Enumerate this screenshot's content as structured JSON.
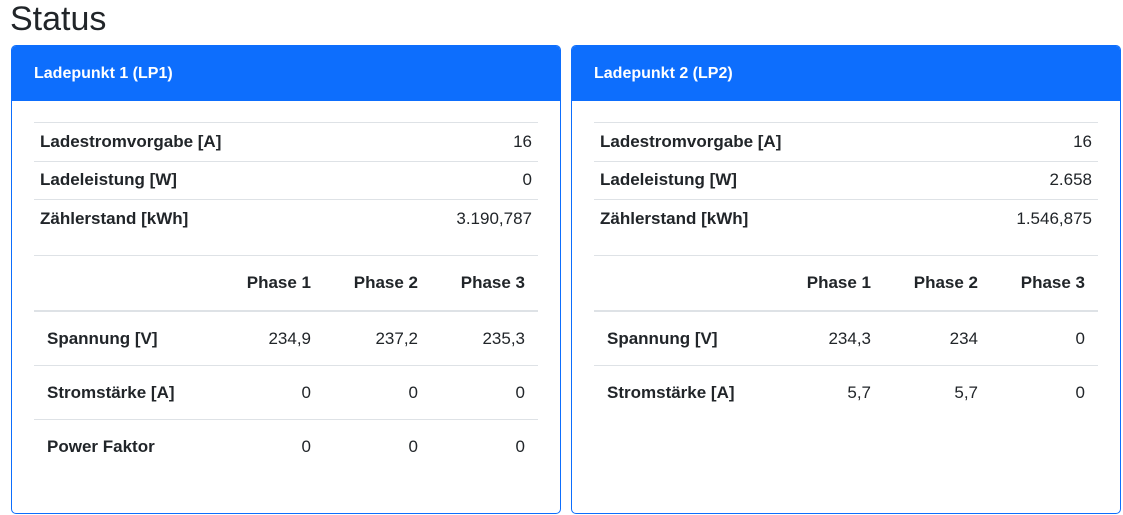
{
  "page": {
    "title": "Status"
  },
  "colors": {
    "primary": "#0d6efd",
    "border": "#dee2e6",
    "text": "#212529"
  },
  "cards": [
    {
      "header": "Ladepunkt 1 (LP1)",
      "kv": [
        {
          "label": "Ladestromvorgabe [A]",
          "value": "16"
        },
        {
          "label": "Ladeleistung [W]",
          "value": "0"
        },
        {
          "label": "Zählerstand [kWh]",
          "value": "3.190,787"
        }
      ],
      "phase_headers": [
        "Phase 1",
        "Phase 2",
        "Phase 3"
      ],
      "phase_rows": [
        {
          "label": "Spannung [V]",
          "values": [
            "234,9",
            "237,2",
            "235,3"
          ]
        },
        {
          "label": "Stromstärke [A]",
          "values": [
            "0",
            "0",
            "0"
          ]
        },
        {
          "label": "Power Faktor",
          "values": [
            "0",
            "0",
            "0"
          ]
        }
      ]
    },
    {
      "header": "Ladepunkt 2 (LP2)",
      "kv": [
        {
          "label": "Ladestromvorgabe [A]",
          "value": "16"
        },
        {
          "label": "Ladeleistung [W]",
          "value": "2.658"
        },
        {
          "label": "Zählerstand [kWh]",
          "value": "1.546,875"
        }
      ],
      "phase_headers": [
        "Phase 1",
        "Phase 2",
        "Phase 3"
      ],
      "phase_rows": [
        {
          "label": "Spannung [V]",
          "values": [
            "234,3",
            "234",
            "0"
          ]
        },
        {
          "label": "Stromstärke [A]",
          "values": [
            "5,7",
            "5,7",
            "0"
          ]
        }
      ]
    }
  ]
}
